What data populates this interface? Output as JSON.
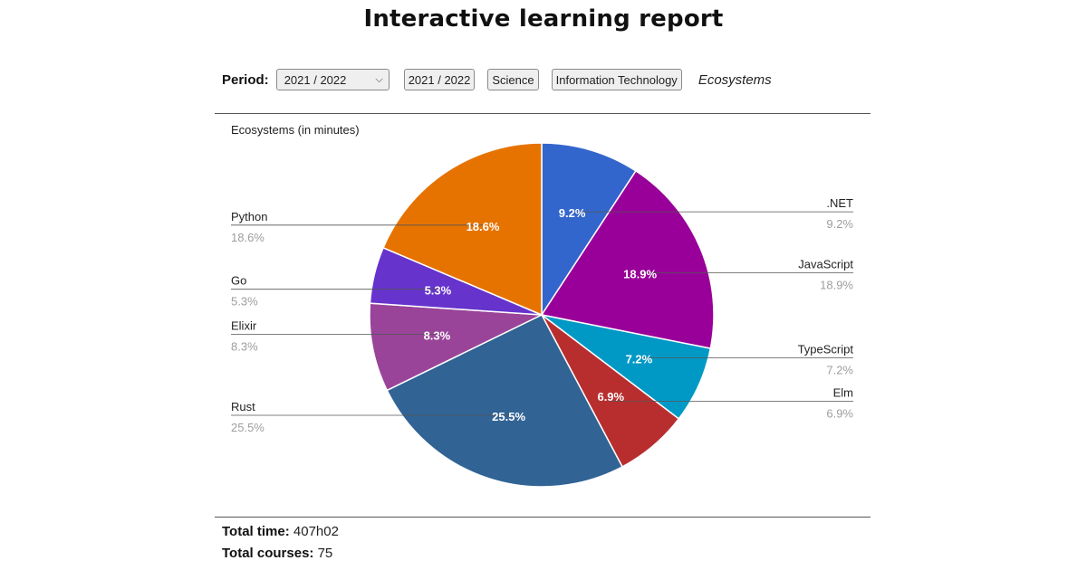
{
  "header": {
    "title": "Interactive learning report"
  },
  "toolbar": {
    "period_label": "Period:",
    "period_select_value": "2021 / 2022",
    "buttons": [
      "2021 / 2022",
      "Science",
      "Information Technology"
    ],
    "current": "Ecosystems"
  },
  "chart_data": {
    "type": "pie",
    "title": "Ecosystems (in minutes)",
    "labels": [
      ".NET",
      "JavaScript",
      "TypeScript",
      "Elm",
      "Rust",
      "Elixir",
      "Go",
      "Python"
    ],
    "values": [
      9.2,
      18.9,
      7.2,
      6.9,
      25.5,
      8.3,
      5.3,
      18.6
    ],
    "percent_labels": [
      "9.2%",
      "18.9%",
      "7.2%",
      "6.9%",
      "25.5%",
      "8.3%",
      "5.3%",
      "18.6%"
    ],
    "colors": [
      "#3366cc",
      "#990099",
      "#0099c6",
      "#b82e2e",
      "#316395",
      "#994499",
      "#6633cc",
      "#e67300"
    ],
    "legend": "labeled"
  },
  "totals": {
    "time_label": "Total time:",
    "time_value": "407h02",
    "courses_label": "Total courses:",
    "courses_value": "75"
  }
}
